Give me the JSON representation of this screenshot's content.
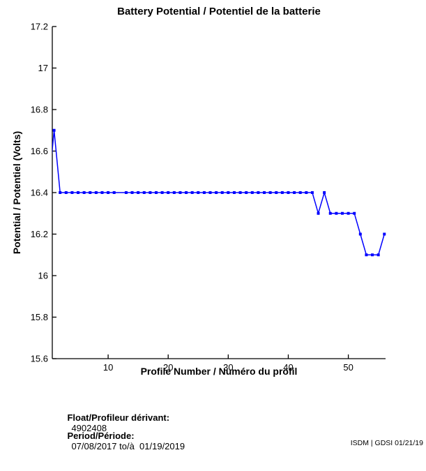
{
  "chart_data": {
    "type": "line",
    "title": "Battery Potential / Potentiel de la batterie",
    "xlabel": "Profile Number / Numéro du profil",
    "ylabel": "Potential / Potentiel (Volts)",
    "xlim": [
      0.7,
      56.2
    ],
    "ylim": [
      15.6,
      17.2
    ],
    "x_ticks": [
      10,
      20,
      30,
      40,
      50
    ],
    "y_ticks": [
      15.6,
      15.8,
      16,
      16.2,
      16.4,
      16.6,
      16.8,
      17,
      17.2
    ],
    "y_tick_labels": [
      "15.6",
      "15.8",
      "16",
      "16.2",
      "16.4",
      "16.6",
      "16.8",
      "17",
      "17.2"
    ],
    "line_color": "#0000ff",
    "axis_color": "#000000",
    "marker": "square",
    "grid": false,
    "legend": "none",
    "series": [
      {
        "name": "battery-potential-volts",
        "points": [
          [
            0,
            16.4
          ],
          [
            1,
            16.7
          ],
          [
            2,
            16.4
          ],
          [
            3,
            16.4
          ],
          [
            4,
            16.4
          ],
          [
            5,
            16.4
          ],
          [
            6,
            16.4
          ],
          [
            7,
            16.4
          ],
          [
            8,
            16.4
          ],
          [
            9,
            16.4
          ],
          [
            10,
            16.4
          ],
          [
            11,
            16.4
          ],
          [
            12,
            16.4
          ],
          [
            13,
            16.4
          ],
          [
            14,
            16.4
          ],
          [
            15,
            16.4
          ],
          [
            16,
            16.4
          ],
          [
            17,
            16.4
          ],
          [
            18,
            16.4
          ],
          [
            19,
            16.4
          ],
          [
            20,
            16.4
          ],
          [
            21,
            16.4
          ],
          [
            22,
            16.4
          ],
          [
            23,
            16.4
          ],
          [
            24,
            16.4
          ],
          [
            25,
            16.4
          ],
          [
            26,
            16.4
          ],
          [
            27,
            16.4
          ],
          [
            28,
            16.4
          ],
          [
            29,
            16.4
          ],
          [
            30,
            16.4
          ],
          [
            31,
            16.4
          ],
          [
            32,
            16.4
          ],
          [
            33,
            16.4
          ],
          [
            34,
            16.4
          ],
          [
            35,
            16.4
          ],
          [
            36,
            16.4
          ],
          [
            37,
            16.4
          ],
          [
            38,
            16.4
          ],
          [
            39,
            16.4
          ],
          [
            40,
            16.4
          ],
          [
            41,
            16.4
          ],
          [
            42,
            16.4
          ],
          [
            43,
            16.4
          ],
          [
            44,
            16.4
          ],
          [
            45,
            16.3
          ],
          [
            46,
            16.4
          ],
          [
            47,
            16.3
          ],
          [
            48,
            16.3
          ],
          [
            49,
            16.3
          ],
          [
            50,
            16.3
          ],
          [
            51,
            16.3
          ],
          [
            52,
            16.2
          ],
          [
            53,
            16.1
          ],
          [
            54,
            16.1
          ],
          [
            55,
            16.1
          ],
          [
            56,
            16.2
          ]
        ],
        "no_marker_x": [
          0,
          12
        ]
      }
    ]
  },
  "footer": {
    "float_label": "Float/Profileur dérivant:",
    "float_value": "4902408",
    "period_label": "Period/Période:",
    "period_value": "07/08/2017 to/à  01/19/2019"
  },
  "watermark": "ISDM | GDSI 01/21/19"
}
